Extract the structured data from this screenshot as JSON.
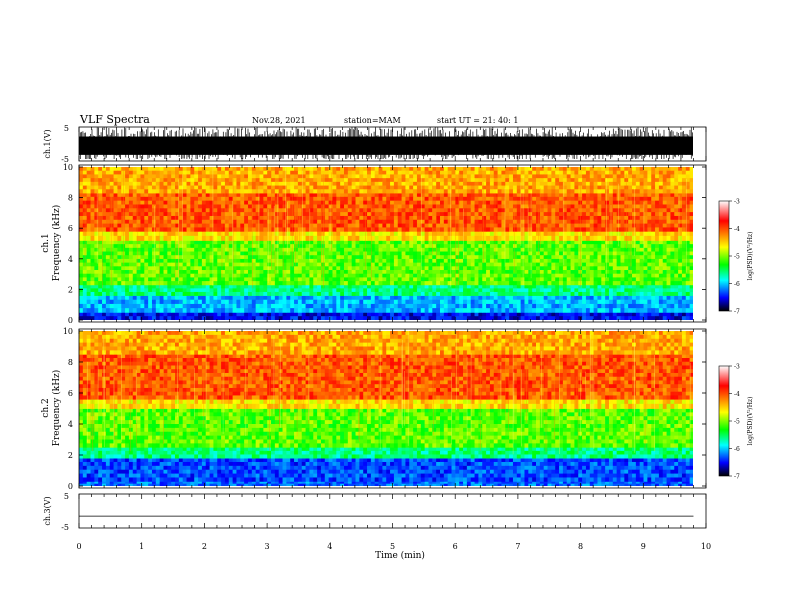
{
  "header": {
    "title": "VLF Spectra",
    "date": "Nov.28, 2021",
    "station": "station=MAM",
    "start": "start UT =  21: 40: 1"
  },
  "colorbar": {
    "label": "log(PSD)(V²/Hz)",
    "ticks": [
      "-3",
      "-4",
      "-5",
      "-6",
      "-7"
    ],
    "colors": [
      "#ffffff",
      "#ff0000",
      "#ffff00",
      "#00ff00",
      "#00ffff",
      "#0000ff",
      "#000000"
    ]
  },
  "chart_data": [
    {
      "type": "line",
      "panel": "ch1-waveform",
      "ylabel": "ch.1(V)",
      "ylim": [
        -5,
        5
      ],
      "yticks": [
        "5",
        "-5"
      ],
      "xlim": [
        0,
        10
      ],
      "description": "dense broadband noise waveform, amplitude spanning roughly -5 to +5 V",
      "color": "#000000"
    },
    {
      "type": "heatmap",
      "panel": "ch1-spectrogram",
      "ylabel": "Frequency (kHz)",
      "channel_label": "ch.1",
      "ylim": [
        0,
        10
      ],
      "yticks": [
        "0",
        "2",
        "4",
        "6",
        "8",
        "10"
      ],
      "xlim": [
        0,
        9.8
      ],
      "zlim": [
        -7,
        -3
      ],
      "bands": [
        {
          "f_low": 0,
          "f_high": 0.5,
          "log_psd": -6.5
        },
        {
          "f_low": 0.5,
          "f_high": 1.6,
          "log_psd": -6
        },
        {
          "f_low": 1.6,
          "f_high": 2.3,
          "log_psd": -5.5
        },
        {
          "f_low": 2.3,
          "f_high": 5.2,
          "log_psd": -5
        },
        {
          "f_low": 5.2,
          "f_high": 5.8,
          "log_psd": -4.5
        },
        {
          "f_low": 5.8,
          "f_high": 8.3,
          "log_psd": -4
        },
        {
          "f_low": 8.3,
          "f_high": 10,
          "log_psd": -4.3
        }
      ]
    },
    {
      "type": "heatmap",
      "panel": "ch2-spectrogram",
      "ylabel": "Frequency (kHz)",
      "channel_label": "ch.2",
      "ylim": [
        0,
        10
      ],
      "yticks": [
        "0",
        "2",
        "4",
        "6",
        "8",
        "10"
      ],
      "xlim": [
        0,
        9.8
      ],
      "zlim": [
        -7,
        -3
      ],
      "bands": [
        {
          "f_low": 0,
          "f_high": 0.3,
          "log_psd": -6.2
        },
        {
          "f_low": 0.3,
          "f_high": 1.8,
          "log_psd": -6.3
        },
        {
          "f_low": 1.8,
          "f_high": 2.5,
          "log_psd": -5.5
        },
        {
          "f_low": 2.5,
          "f_high": 5.0,
          "log_psd": -5
        },
        {
          "f_low": 5.0,
          "f_high": 5.6,
          "log_psd": -4.5
        },
        {
          "f_low": 5.6,
          "f_high": 8.5,
          "log_psd": -4
        },
        {
          "f_low": 8.5,
          "f_high": 10,
          "log_psd": -4.3
        }
      ]
    },
    {
      "type": "line",
      "panel": "ch3-waveform",
      "ylabel": "ch.3(V)",
      "ylim": [
        -5,
        5
      ],
      "yticks": [
        "5",
        "-5"
      ],
      "xlim": [
        0,
        10
      ],
      "x": [
        0,
        9.8
      ],
      "y": [
        -1.5,
        -1.5
      ],
      "color": "#000000"
    }
  ],
  "xaxis": {
    "label": "Time (min)",
    "ticks": [
      "0",
      "1",
      "2",
      "3",
      "4",
      "5",
      "6",
      "7",
      "8",
      "9",
      "10"
    ]
  }
}
